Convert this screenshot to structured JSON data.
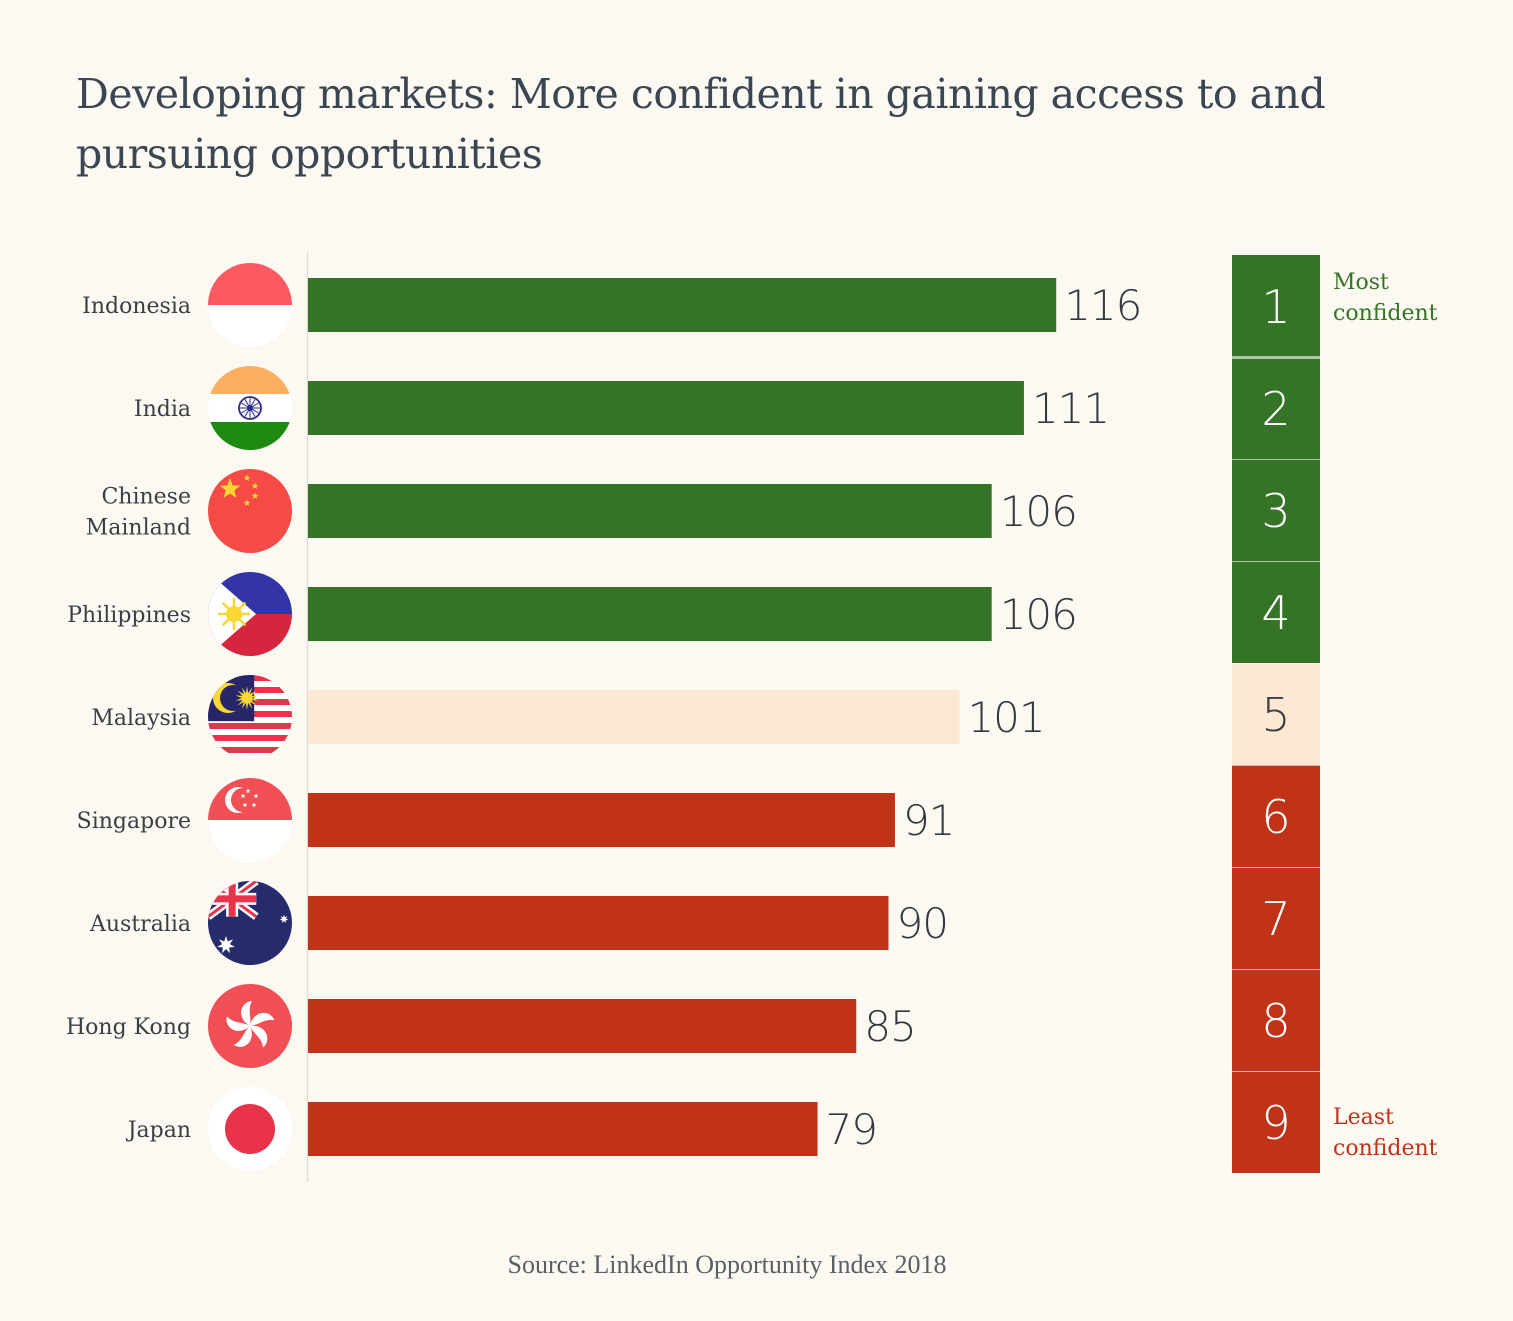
{
  "title": "Developing markets: More confident in gaining access to and pursuing opportunities",
  "source": "Source: LinkedIn Opportunity Index 2018",
  "colors": {
    "most": "#357426",
    "neutral": "#fde9d3",
    "least": "#c13319",
    "axis": "#e2ddd3",
    "label": "#3a3f44",
    "value": "#33393e"
  },
  "chart_data": {
    "type": "bar",
    "orientation": "horizontal",
    "title": "Developing markets: More confident in gaining access to and pursuing opportunities",
    "categories": [
      {
        "label": [
          "Indonesia"
        ],
        "flag": "indonesia-flag-icon",
        "value": 116,
        "rank": "1",
        "group": "most"
      },
      {
        "label": [
          "India"
        ],
        "flag": "india-flag-icon",
        "value": 111,
        "rank": "2",
        "group": "most"
      },
      {
        "label": [
          "Chinese",
          "Mainland"
        ],
        "flag": "china-flag-icon",
        "value": 106,
        "rank": "3",
        "group": "most"
      },
      {
        "label": [
          "Philippines"
        ],
        "flag": "philippines-flag-icon",
        "value": 106,
        "rank": "4",
        "group": "most"
      },
      {
        "label": [
          "Malaysia"
        ],
        "flag": "malaysia-flag-icon",
        "value": 101,
        "rank": "5",
        "group": "neutral"
      },
      {
        "label": [
          "Singapore"
        ],
        "flag": "singapore-flag-icon",
        "value": 91,
        "rank": "6",
        "group": "least"
      },
      {
        "label": [
          "Australia"
        ],
        "flag": "australia-flag-icon",
        "value": 90,
        "rank": "7",
        "group": "least"
      },
      {
        "label": [
          "Hong Kong"
        ],
        "flag": "hongkong-flag-icon",
        "value": 85,
        "rank": "8",
        "group": "least"
      },
      {
        "label": [
          "Japan"
        ],
        "flag": "japan-flag-icon",
        "value": 79,
        "rank": "9",
        "group": "least"
      }
    ],
    "rank_legend": {
      "top": [
        "Most",
        "confident"
      ],
      "bottom": [
        "Least",
        "confident"
      ]
    }
  }
}
